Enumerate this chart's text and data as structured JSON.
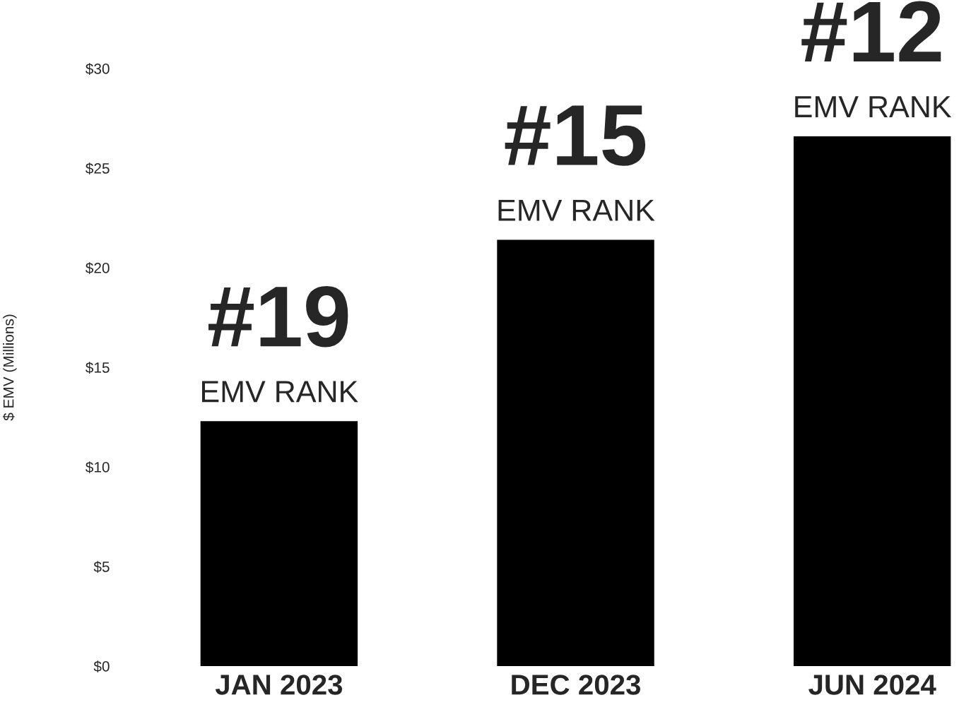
{
  "chart_data": {
    "type": "bar",
    "ylabel": "$ EMV (Millions)",
    "categories": [
      "JAN 2023",
      "DEC 2023",
      "JUN 2024"
    ],
    "values": [
      12.3,
      21.4,
      26.6
    ],
    "color": "#000000",
    "ylim": [
      0,
      30
    ],
    "yticks": [
      {
        "value": 0,
        "label": "$0"
      },
      {
        "value": 5,
        "label": "$5"
      },
      {
        "value": 10,
        "label": "$10"
      },
      {
        "value": 15,
        "label": "$15"
      },
      {
        "value": 20,
        "label": "$20"
      },
      {
        "value": 25,
        "label": "$25"
      },
      {
        "value": 30,
        "label": "$30"
      }
    ],
    "grid": false,
    "annotations": [
      {
        "text": "#19\nEMV RANK",
        "x": "JAN 2023",
        "y": 12.3
      },
      {
        "text": "#15\nEMV RANK",
        "x": "DEC 2023",
        "y": 21.4
      },
      {
        "text": "#12\nEMV RANK",
        "x": "JUN 2024",
        "y": 26.6
      }
    ]
  }
}
